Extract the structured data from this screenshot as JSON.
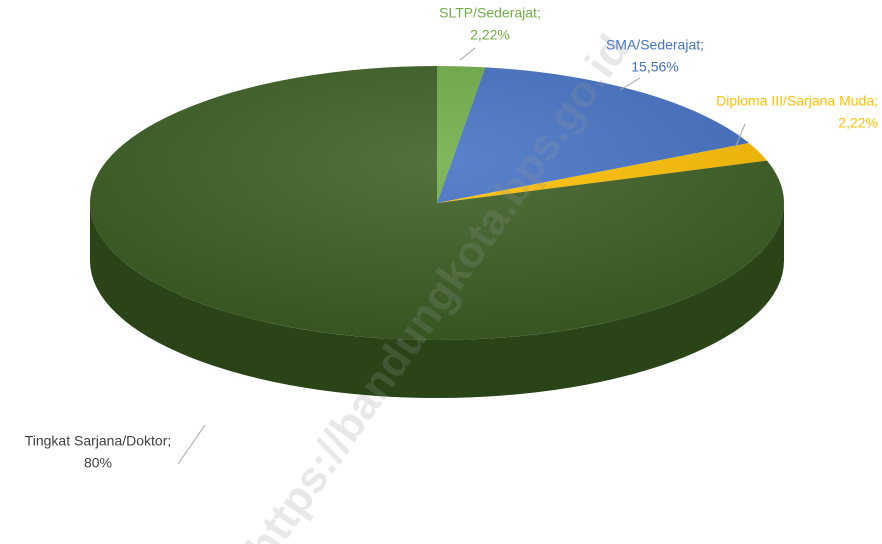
{
  "chart_data": {
    "type": "pie",
    "categories": [
      "SLTP/Sederajat;",
      "SMA/Sederajat;",
      "Diploma III/Sarjana Muda;",
      "Tingkat Sarjana/Doktor;"
    ],
    "values": [
      2.22,
      15.56,
      2.22,
      80
    ],
    "value_labels": [
      "2,22%",
      "15,56%",
      "2,22%",
      "80%"
    ],
    "colors": [
      "#70ad47",
      "#4472c4",
      "#ffc000",
      "#3b5e22"
    ],
    "label_colors": [
      "#70ad47",
      "#4472c4",
      "#ffc000",
      "#404040"
    ],
    "watermark": "https://bandungkota.bps.go.id"
  }
}
